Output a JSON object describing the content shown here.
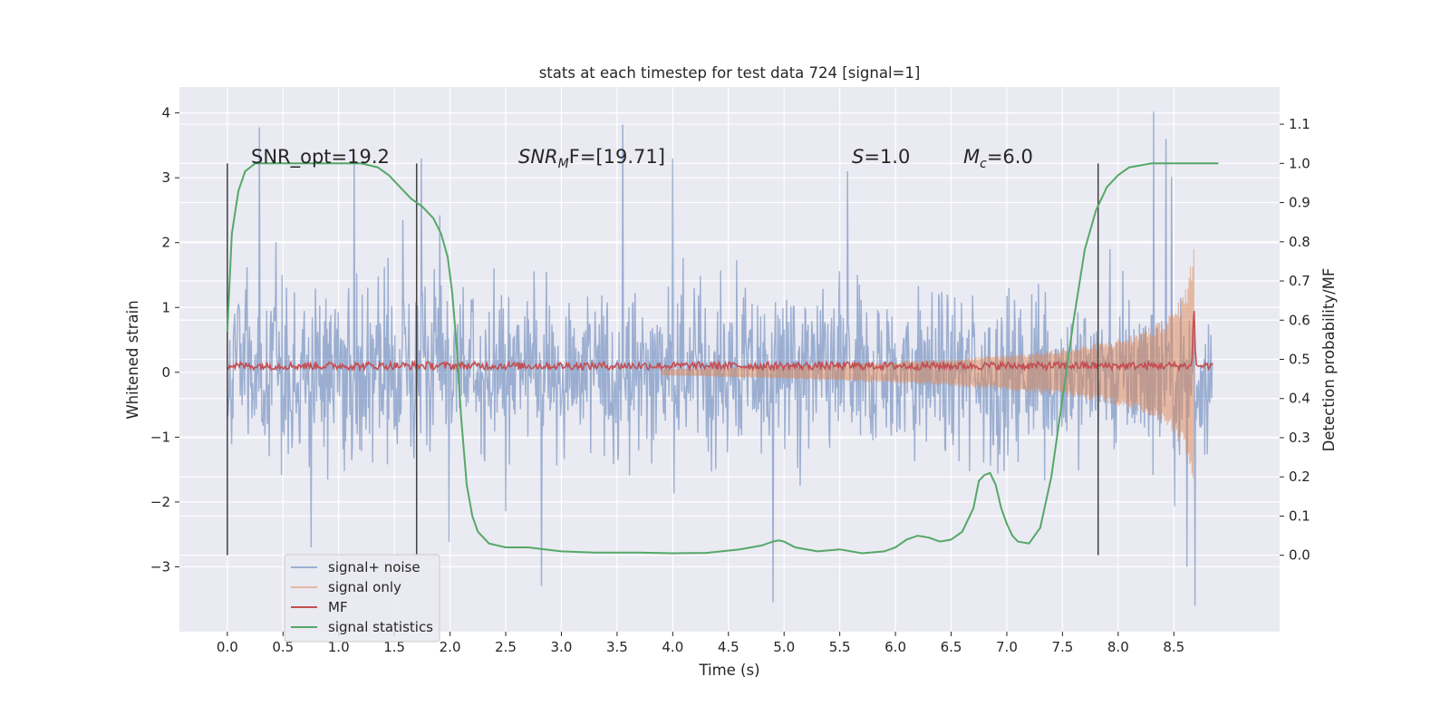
{
  "chart_data": {
    "type": "line",
    "title": "stats at each timestep for test data 724 [signal=1]",
    "xlabel": "Time (s)",
    "ylabel": "Whitened strain",
    "y2label": "Detection probability/MF",
    "xlim": [
      -0.43,
      9.45
    ],
    "ylim": [
      -4.0,
      4.4
    ],
    "y2lim": [
      -0.195,
      1.195
    ],
    "xticks": [
      "0.0",
      "0.5",
      "1.0",
      "1.5",
      "2.0",
      "2.5",
      "3.0",
      "3.5",
      "4.0",
      "4.5",
      "5.0",
      "5.5",
      "6.0",
      "6.5",
      "7.0",
      "7.5",
      "8.0",
      "8.5"
    ],
    "yticks": [
      "4",
      "3",
      "2",
      "1",
      "0",
      "−1",
      "−2",
      "−3"
    ],
    "y2ticks": [
      "1.1",
      "1.0",
      "0.9",
      "0.8",
      "0.7",
      "0.6",
      "0.5",
      "0.4",
      "0.3",
      "0.2",
      "0.1",
      "0.0"
    ],
    "grid": true,
    "legend_position": "lower-left",
    "annotations": {
      "snr_opt": "SNR_opt=19.2",
      "snr_mf_prefix": "SNR",
      "snr_mf_sub": "M",
      "snr_mf_suffix": "F=[19.71]",
      "s_prefix": "S",
      "s_suffix": "=1.0",
      "mc_prefix": "M",
      "mc_sub": "c",
      "mc_suffix": "=6.0"
    },
    "segment_boundaries": [
      0.0,
      1.7,
      7.82
    ],
    "series": [
      {
        "name": "signal+ noise",
        "color": "#4c72b0",
        "kind": "noise_envelope",
        "x_range": [
          0.0,
          8.85
        ],
        "typical_extent": [
          -1.4,
          1.4
        ],
        "max_peak": 4.02,
        "min_peak": -3.6
      },
      {
        "name": "signal only",
        "color": "#dd8452",
        "kind": "chirp",
        "x_range": [
          3.9,
          8.68
        ],
        "amplitude_start": 0.05,
        "amplitude_end": 2.3
      },
      {
        "name": "MF",
        "color": "#c44e52",
        "kind": "matched_filter",
        "x_range": [
          0.0,
          8.85
        ],
        "baseline": 0.1,
        "peak": {
          "x": 8.68,
          "y": 1.0
        }
      },
      {
        "name": "signal statistics",
        "color": "#55a868",
        "axis": "right",
        "x": [
          0.0,
          0.04,
          0.1,
          0.16,
          0.25,
          0.35,
          0.5,
          0.8,
          1.2,
          1.35,
          1.45,
          1.55,
          1.65,
          1.75,
          1.85,
          1.92,
          1.98,
          2.02,
          2.06,
          2.1,
          2.15,
          2.2,
          2.25,
          2.35,
          2.5,
          2.7,
          3.0,
          3.3,
          3.7,
          4.0,
          4.3,
          4.6,
          4.8,
          4.9,
          4.95,
          5.0,
          5.1,
          5.3,
          5.5,
          5.7,
          5.9,
          6.0,
          6.1,
          6.2,
          6.3,
          6.4,
          6.5,
          6.6,
          6.7,
          6.75,
          6.8,
          6.85,
          6.9,
          6.95,
          7.0,
          7.05,
          7.1,
          7.2,
          7.3,
          7.4,
          7.5,
          7.6,
          7.7,
          7.8,
          7.9,
          8.0,
          8.1,
          8.2,
          8.3,
          8.5,
          8.7,
          8.8,
          8.9
        ],
        "y": [
          0.57,
          0.82,
          0.93,
          0.98,
          1.0,
          1.0,
          1.0,
          1.0,
          1.0,
          0.99,
          0.97,
          0.94,
          0.91,
          0.89,
          0.86,
          0.82,
          0.76,
          0.67,
          0.53,
          0.35,
          0.18,
          0.1,
          0.06,
          0.03,
          0.02,
          0.02,
          0.01,
          0.007,
          0.007,
          0.005,
          0.006,
          0.015,
          0.025,
          0.035,
          0.038,
          0.035,
          0.02,
          0.01,
          0.015,
          0.005,
          0.01,
          0.02,
          0.04,
          0.05,
          0.045,
          0.035,
          0.04,
          0.06,
          0.12,
          0.19,
          0.205,
          0.21,
          0.18,
          0.12,
          0.08,
          0.05,
          0.035,
          0.03,
          0.07,
          0.2,
          0.4,
          0.6,
          0.78,
          0.88,
          0.94,
          0.97,
          0.99,
          0.995,
          1.0,
          1.0,
          1.0,
          1.0,
          1.0
        ]
      }
    ]
  }
}
